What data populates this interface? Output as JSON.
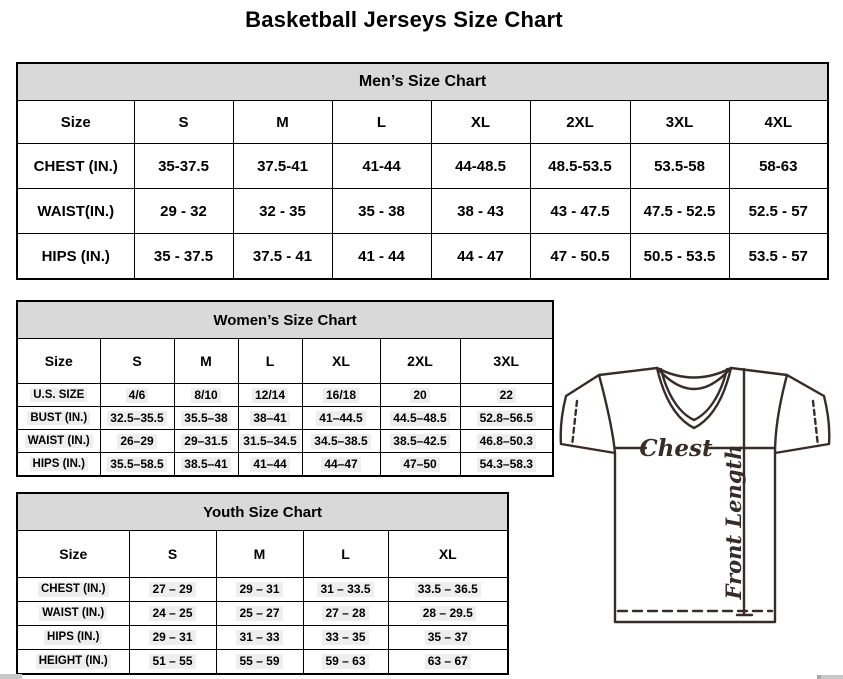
{
  "page": {
    "title": "Basketball Jerseys Size Chart"
  },
  "colors": {
    "table_band_bg": "#d9d9d9",
    "border": "#000000",
    "highlight_bg": "#eeeeee",
    "diagram_stroke": "#362d2a"
  },
  "tables": [
    {
      "id": "mens",
      "title": "Men’s Size Chart",
      "columns": [
        "Size",
        "S",
        "M",
        "L",
        "XL",
        "2XL",
        "3XL",
        "4XL"
      ],
      "highlight": false,
      "rows": [
        {
          "label": "CHEST (IN.)",
          "values": [
            "35-37.5",
            "37.5-41",
            "41-44",
            "44-48.5",
            "48.5-53.5",
            "53.5-58",
            "58-63"
          ]
        },
        {
          "label": "WAIST(IN.)",
          "values": [
            "29 - 32",
            "32 - 35",
            "35 - 38",
            "38 - 43",
            "43 - 47.5",
            "47.5 - 52.5",
            "52.5 - 57"
          ]
        },
        {
          "label": "HIPS (IN.)",
          "values": [
            "35 - 37.5",
            "37.5 - 41",
            "41 - 44",
            "44 - 47",
            "47 - 50.5",
            "50.5 - 53.5",
            "53.5 - 57"
          ]
        }
      ]
    },
    {
      "id": "womens",
      "title": "Women’s Size Chart",
      "columns": [
        "Size",
        "S",
        "M",
        "L",
        "XL",
        "2XL",
        "3XL"
      ],
      "highlight": true,
      "rows": [
        {
          "label": "U.S. SIZE",
          "values": [
            "4/6",
            "8/10",
            "12/14",
            "16/18",
            "20",
            "22"
          ]
        },
        {
          "label": "BUST (IN.)",
          "values": [
            "32.5–35.5",
            "35.5–38",
            "38–41",
            "41–44.5",
            "44.5–48.5",
            "52.8–56.5"
          ]
        },
        {
          "label": "WAIST (IN.)",
          "values": [
            "26–29",
            "29–31.5",
            "31.5–34.5",
            "34.5–38.5",
            "38.5–42.5",
            "46.8–50.3"
          ]
        },
        {
          "label": "HIPS (IN.)",
          "values": [
            "35.5–58.5",
            "38.5–41",
            "41–44",
            "44–47",
            "47–50",
            "54.3–58.3"
          ]
        }
      ]
    },
    {
      "id": "youth",
      "title": "Youth Size Chart",
      "columns": [
        "Size",
        "S",
        "M",
        "L",
        "XL"
      ],
      "highlight": true,
      "rows": [
        {
          "label": "CHEST (IN.)",
          "values": [
            "27 – 29",
            "29 – 31",
            "31 – 33.5",
            "33.5 – 36.5"
          ]
        },
        {
          "label": "WAIST (IN.)",
          "values": [
            "24 – 25",
            "25 – 27",
            "27 – 28",
            "28 – 29.5"
          ]
        },
        {
          "label": "HIPS (IN.)",
          "values": [
            "29 – 31",
            "31 – 33",
            "33 – 35",
            "35 – 37"
          ]
        },
        {
          "label": "HEIGHT (IN.)",
          "values": [
            "51 – 55",
            "55 – 59",
            "59 – 63",
            "63 – 67"
          ]
        }
      ]
    }
  ],
  "diagram": {
    "chest_label": "Chest",
    "front_length_label": "Front Length"
  }
}
